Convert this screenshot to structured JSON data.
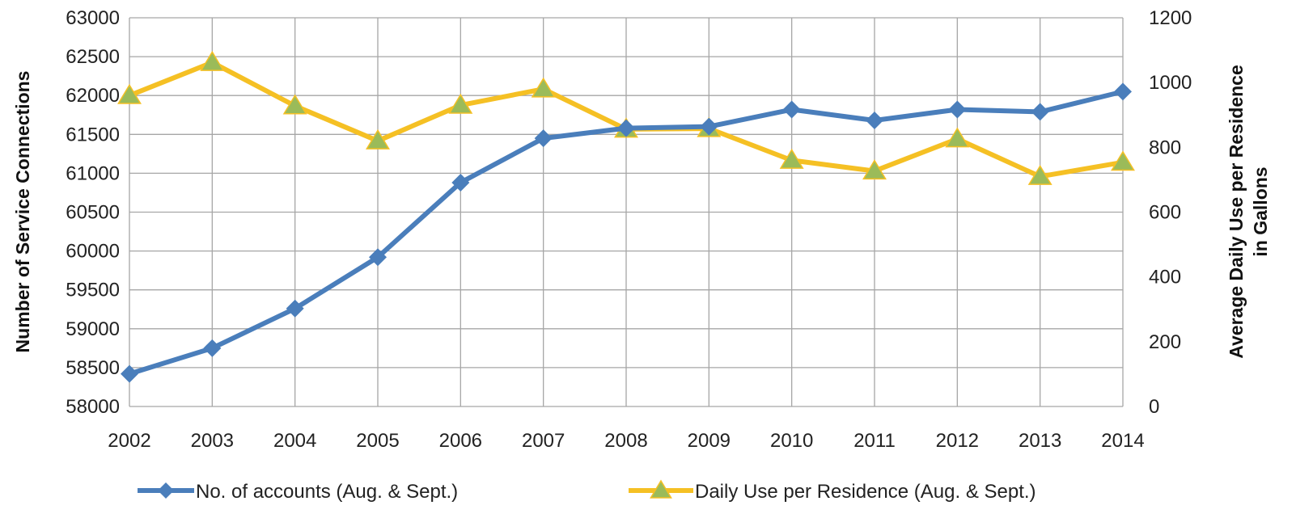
{
  "chart_data": {
    "type": "line",
    "title": "",
    "x": [
      "2002",
      "2003",
      "2004",
      "2005",
      "2006",
      "2007",
      "2008",
      "2009",
      "2010",
      "2011",
      "2012",
      "2013",
      "2014"
    ],
    "xlabel": "",
    "ylabel_left": "Number of Service Connections",
    "ylabel_right_line1": "Average Daily Use per Residence",
    "ylabel_right_line2": "in Gallons",
    "ylim_left": [
      58000,
      63000
    ],
    "ylim_right": [
      0,
      1200
    ],
    "yticks_left": [
      "58000",
      "58500",
      "59000",
      "59500",
      "60000",
      "60500",
      "61000",
      "61500",
      "62000",
      "62500",
      "63000"
    ],
    "yticks_right": [
      "0",
      "200",
      "400",
      "600",
      "800",
      "1000",
      "1200"
    ],
    "grid": true,
    "legend_position": "bottom",
    "series": [
      {
        "name": "No. of accounts (Aug. & Sept.)",
        "axis": "left",
        "color": "#4a7ebb",
        "marker": "diamond",
        "values": [
          58420,
          58750,
          59260,
          59920,
          60880,
          61450,
          61580,
          61600,
          61820,
          61680,
          61820,
          61790,
          62050
        ]
      },
      {
        "name": "Daily Use per Residence (Aug. & Sept.)",
        "axis": "right",
        "color": "#f5c024",
        "marker_fill": "#9bbb59",
        "marker": "triangle",
        "values": [
          960,
          1062,
          928,
          820,
          930,
          980,
          856,
          858,
          760,
          727,
          826,
          710,
          754
        ]
      }
    ]
  }
}
